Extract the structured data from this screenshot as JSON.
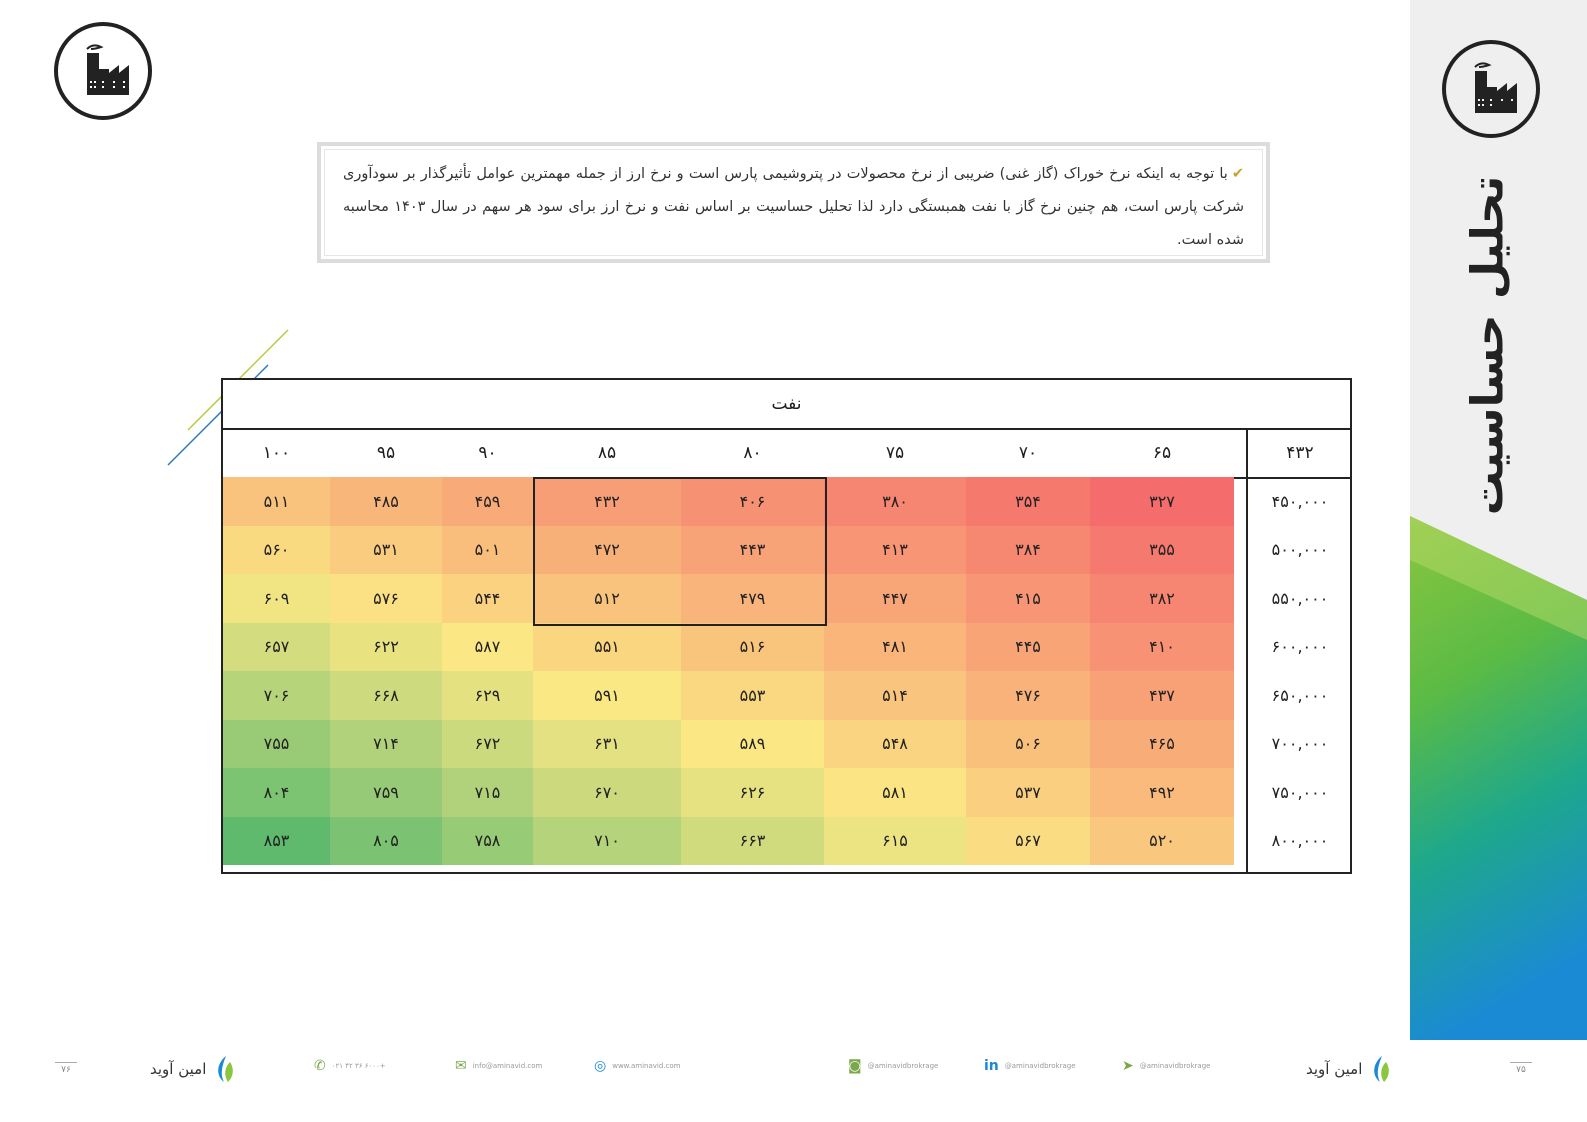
{
  "intro": {
    "tick_icon": "check-pen-icon",
    "text": "با توجه به اینکه نرخ خوراک (گاز غنی) ضریبی از نرخ محصولات در پتروشیمی پارس است و نرخ ارز از جمله مهمترین عوامل تأثیرگذار بر سودآوری شرکت پارس است، هم چنین نرخ گاز با نفت همبستگی دارد لذا تحلیل حساسیت بر اساس نفت و نرخ ارز برای سود هر سهم در سال ۱۴۰۳ محاسبه شده است."
  },
  "side_title": "تحلیل حساسیت",
  "table": {
    "title": "نفت",
    "corner": "۴۳۲",
    "columns": [
      "۶۵",
      "۷۰",
      "۷۵",
      "۸۰",
      "۸۵",
      "۹۰",
      "۹۵",
      "۱۰۰"
    ],
    "rows": [
      {
        "label": "۴۵۰,۰۰۰",
        "values": [
          "۳۲۷",
          "۳۵۴",
          "۳۸۰",
          "۴۰۶",
          "۴۳۲",
          "۴۵۹",
          "۴۸۵",
          "۵۱۱"
        ],
        "nums": [
          327,
          354,
          380,
          406,
          432,
          459,
          485,
          511
        ]
      },
      {
        "label": "۵۰۰,۰۰۰",
        "values": [
          "۳۵۵",
          "۳۸۴",
          "۴۱۳",
          "۴۴۳",
          "۴۷۲",
          "۵۰۱",
          "۵۳۱",
          "۵۶۰"
        ],
        "nums": [
          355,
          384,
          413,
          443,
          472,
          501,
          531,
          560
        ]
      },
      {
        "label": "۵۵۰,۰۰۰",
        "values": [
          "۳۸۲",
          "۴۱۵",
          "۴۴۷",
          "۴۷۹",
          "۵۱۲",
          "۵۴۴",
          "۵۷۶",
          "۶۰۹"
        ],
        "nums": [
          382,
          415,
          447,
          479,
          512,
          544,
          576,
          609
        ]
      },
      {
        "label": "۶۰۰,۰۰۰",
        "values": [
          "۴۱۰",
          "۴۴۵",
          "۴۸۱",
          "۵۱۶",
          "۵۵۱",
          "۵۸۷",
          "۶۲۲",
          "۶۵۷"
        ],
        "nums": [
          410,
          445,
          481,
          516,
          551,
          587,
          622,
          657
        ]
      },
      {
        "label": "۶۵۰,۰۰۰",
        "values": [
          "۴۳۷",
          "۴۷۶",
          "۵۱۴",
          "۵۵۳",
          "۵۹۱",
          "۶۲۹",
          "۶۶۸",
          "۷۰۶"
        ],
        "nums": [
          437,
          476,
          514,
          553,
          591,
          629,
          668,
          706
        ]
      },
      {
        "label": "۷۰۰,۰۰۰",
        "values": [
          "۴۶۵",
          "۵۰۶",
          "۵۴۸",
          "۵۸۹",
          "۶۳۱",
          "۶۷۲",
          "۷۱۴",
          "۷۵۵"
        ],
        "nums": [
          465,
          506,
          548,
          589,
          631,
          672,
          714,
          755
        ]
      },
      {
        "label": "۷۵۰,۰۰۰",
        "values": [
          "۴۹۲",
          "۵۳۷",
          "۵۸۱",
          "۶۲۶",
          "۶۷۰",
          "۷۱۵",
          "۷۵۹",
          "۸۰۴"
        ],
        "nums": [
          492,
          537,
          581,
          626,
          670,
          715,
          759,
          804
        ]
      },
      {
        "label": "۸۰۰,۰۰۰",
        "values": [
          "۵۲۰",
          "۵۶۷",
          "۶۱۵",
          "۶۶۳",
          "۷۱۰",
          "۷۵۸",
          "۸۰۵",
          "۸۵۳"
        ],
        "nums": [
          520,
          567,
          615,
          663,
          710,
          758,
          805,
          853
        ]
      }
    ],
    "color_scale": {
      "low": "#f56c6c",
      "mid": "#fbe884",
      "high": "#5fba6e"
    }
  },
  "footer": {
    "brand_name": "امین آوید",
    "page_left": "۷۶",
    "page_right": "۷۵",
    "phone": "۰۲۱ ۴۲ ۳۶ ۶۰۰۰+",
    "email": "info@aminavid.com",
    "website": "www.aminavid.com",
    "instagram": "@aminavidbrokrage",
    "linkedin": "@aminavidbrokrage",
    "telegram": "@aminavidbrokrage"
  },
  "colors": {
    "accent_green": "#8cc63f",
    "accent_blue": "#1a8ad4",
    "panel_gray": "#efefef"
  }
}
